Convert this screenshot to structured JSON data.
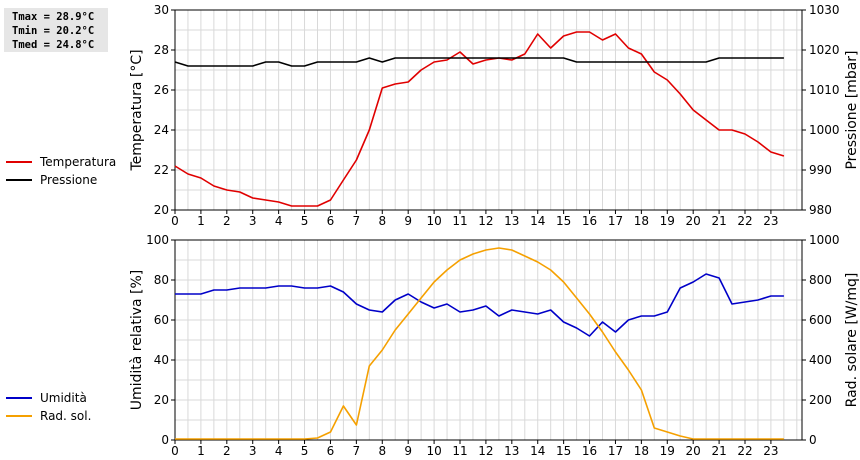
{
  "stats": {
    "tmax": "Tmax = 28.9°C",
    "tmin": "Tmin = 20.2°C",
    "tmed": "Tmed = 24.8°C"
  },
  "colors": {
    "temperature": "#e00000",
    "pressure": "#000000",
    "humidity": "#0000c8",
    "radiation": "#f5a000",
    "grid": "#d9d9d9"
  },
  "chart_data": [
    {
      "type": "line",
      "xlabel": "",
      "x_ticks": [
        0,
        1,
        2,
        3,
        4,
        5,
        6,
        7,
        8,
        9,
        10,
        11,
        12,
        13,
        14,
        15,
        16,
        17,
        18,
        19,
        20,
        21,
        22,
        23
      ],
      "xlim": [
        0,
        24.2
      ],
      "left_axis": {
        "label": "Temperatura [°C]",
        "lim": [
          20,
          30
        ],
        "ticks": [
          20,
          22,
          24,
          26,
          28,
          30
        ]
      },
      "right_axis": {
        "label": "Pressione [mbar]",
        "lim": [
          980,
          1030
        ],
        "ticks": [
          980,
          990,
          1000,
          1010,
          1020,
          1030
        ]
      },
      "legend": [
        "Temperatura",
        "Pressione"
      ],
      "grid": true,
      "series": [
        {
          "name": "Temperatura",
          "axis": "left",
          "x": [
            0,
            0.5,
            1,
            1.5,
            2,
            2.5,
            3,
            3.5,
            4,
            4.5,
            5,
            5.5,
            6,
            6.5,
            7,
            7.5,
            8,
            8.5,
            9,
            9.5,
            10,
            10.5,
            11,
            11.5,
            12,
            12.5,
            13,
            13.5,
            14,
            14.5,
            15,
            15.5,
            16,
            16.5,
            17,
            17.5,
            18,
            18.5,
            19,
            19.5,
            20,
            20.5,
            21,
            21.5,
            22,
            22.5,
            23,
            23.5
          ],
          "y": [
            22.2,
            21.8,
            21.6,
            21.2,
            21.0,
            20.9,
            20.6,
            20.5,
            20.4,
            20.2,
            20.2,
            20.2,
            20.5,
            21.5,
            22.5,
            24.0,
            26.1,
            26.3,
            26.4,
            27.0,
            27.4,
            27.5,
            27.9,
            27.3,
            27.5,
            27.6,
            27.5,
            27.8,
            28.8,
            28.1,
            28.7,
            28.9,
            28.9,
            28.5,
            28.8,
            28.1,
            27.8,
            26.9,
            26.5,
            25.8,
            25.0,
            24.5,
            24.0,
            24.0,
            23.8,
            23.4,
            22.9,
            22.7
          ]
        },
        {
          "name": "Pressione",
          "axis": "right",
          "x": [
            0,
            0.5,
            1,
            1.5,
            2,
            2.5,
            3,
            3.5,
            4,
            4.5,
            5,
            5.5,
            6,
            6.5,
            7,
            7.5,
            8,
            8.5,
            9,
            9.5,
            10,
            10.5,
            11,
            11.5,
            12,
            12.5,
            13,
            13.5,
            14,
            14.5,
            15,
            15.5,
            16,
            16.5,
            17,
            17.5,
            18,
            18.5,
            19,
            19.5,
            20,
            20.5,
            21,
            21.5,
            22,
            22.5,
            23,
            23.5
          ],
          "y": [
            1017,
            1016,
            1016,
            1016,
            1016,
            1016,
            1016,
            1017,
            1017,
            1016,
            1016,
            1017,
            1017,
            1017,
            1017,
            1018,
            1017,
            1018,
            1018,
            1018,
            1018,
            1018,
            1018,
            1018,
            1018,
            1018,
            1018,
            1018,
            1018,
            1018,
            1018,
            1017,
            1017,
            1017,
            1017,
            1017,
            1017,
            1017,
            1017,
            1017,
            1017,
            1017,
            1018,
            1018,
            1018,
            1018,
            1018,
            1018
          ]
        }
      ]
    },
    {
      "type": "line",
      "xlabel": "",
      "x_ticks": [
        0,
        1,
        2,
        3,
        4,
        5,
        6,
        7,
        8,
        9,
        10,
        11,
        12,
        13,
        14,
        15,
        16,
        17,
        18,
        19,
        20,
        21,
        22,
        23
      ],
      "xlim": [
        0,
        24.2
      ],
      "left_axis": {
        "label": "Umidità relativa [%]",
        "lim": [
          0,
          100
        ],
        "ticks": [
          0,
          20,
          40,
          60,
          80,
          100
        ]
      },
      "right_axis": {
        "label": "Rad. solare [W/mq]",
        "lim": [
          0,
          1000
        ],
        "ticks": [
          0,
          200,
          400,
          600,
          800,
          1000
        ]
      },
      "legend": [
        "Umidità",
        "Rad. sol."
      ],
      "grid": true,
      "series": [
        {
          "name": "Umidità",
          "axis": "left",
          "x": [
            0,
            0.5,
            1,
            1.5,
            2,
            2.5,
            3,
            3.5,
            4,
            4.5,
            5,
            5.5,
            6,
            6.5,
            7,
            7.5,
            8,
            8.5,
            9,
            9.5,
            10,
            10.5,
            11,
            11.5,
            12,
            12.5,
            13,
            13.5,
            14,
            14.5,
            15,
            15.5,
            16,
            16.5,
            17,
            17.5,
            18,
            18.5,
            19,
            19.5,
            20,
            20.5,
            21,
            21.5,
            22,
            22.5,
            23,
            23.5
          ],
          "y": [
            73,
            73,
            73,
            75,
            75,
            76,
            76,
            76,
            77,
            77,
            76,
            76,
            77,
            74,
            68,
            65,
            64,
            70,
            73,
            69,
            66,
            68,
            64,
            65,
            67,
            62,
            65,
            64,
            63,
            65,
            59,
            56,
            52,
            59,
            54,
            60,
            62,
            62,
            64,
            76,
            79,
            83,
            81,
            68,
            69,
            70,
            72,
            72
          ]
        },
        {
          "name": "Rad. sol.",
          "axis": "right",
          "x": [
            0,
            0.5,
            1,
            1.5,
            2,
            2.5,
            3,
            3.5,
            4,
            4.5,
            5,
            5.5,
            6,
            6.5,
            7,
            7.5,
            8,
            8.5,
            9,
            9.5,
            10,
            10.5,
            11,
            11.5,
            12,
            12.5,
            13,
            13.5,
            14,
            14.5,
            15,
            15.5,
            16,
            16.5,
            17,
            17.5,
            18,
            18.5,
            19,
            19.5,
            20,
            20.5,
            21,
            21.5,
            22,
            22.5,
            23,
            23.5
          ],
          "y": [
            5,
            5,
            5,
            5,
            5,
            5,
            5,
            5,
            5,
            5,
            5,
            10,
            40,
            170,
            75,
            370,
            450,
            550,
            630,
            710,
            790,
            850,
            900,
            930,
            950,
            960,
            950,
            920,
            890,
            850,
            790,
            710,
            630,
            540,
            440,
            350,
            250,
            60,
            40,
            20,
            5,
            5,
            5,
            5,
            5,
            5,
            5,
            5
          ]
        }
      ]
    }
  ]
}
